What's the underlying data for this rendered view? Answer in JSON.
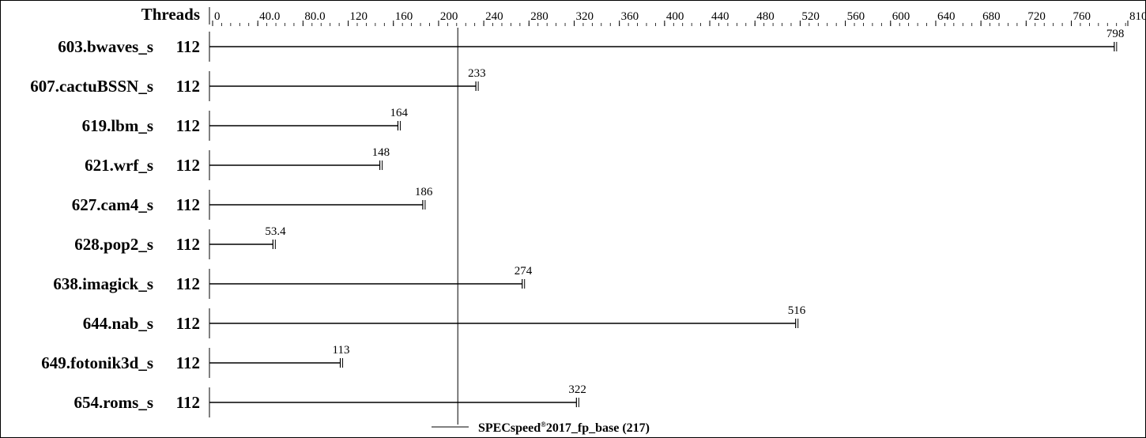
{
  "chart_data": {
    "type": "bar",
    "threads_header": "Threads",
    "categories": [
      "603.bwaves_s",
      "607.cactuBSSN_s",
      "619.lbm_s",
      "621.wrf_s",
      "627.cam4_s",
      "628.pop2_s",
      "638.imagick_s",
      "644.nab_s",
      "649.fotonik3d_s",
      "654.roms_s"
    ],
    "threads": [
      "112",
      "112",
      "112",
      "112",
      "112",
      "112",
      "112",
      "112",
      "112",
      "112"
    ],
    "values": [
      798,
      233,
      164,
      148,
      186,
      53.4,
      274,
      516,
      113,
      322
    ],
    "value_labels": [
      "798",
      "233",
      "164",
      "148",
      "186",
      "53.4",
      "274",
      "516",
      "113",
      "322"
    ],
    "xlim": [
      0,
      810
    ],
    "tick_labels": [
      "0",
      "40.0",
      "80.0",
      "120",
      "160",
      "200",
      "240",
      "280",
      "320",
      "360",
      "400",
      "440",
      "480",
      "520",
      "560",
      "600",
      "640",
      "680",
      "720",
      "760",
      "810"
    ],
    "tick_values": [
      0,
      40,
      80,
      120,
      160,
      200,
      240,
      280,
      320,
      360,
      400,
      440,
      480,
      520,
      560,
      600,
      640,
      680,
      720,
      760,
      810
    ],
    "minor_tick_step": 8,
    "reference": {
      "value": 217,
      "label_prefix": "SPECspeed",
      "label_sup": "®",
      "label_suffix": "2017_fp_base (217)"
    },
    "grid": false
  }
}
